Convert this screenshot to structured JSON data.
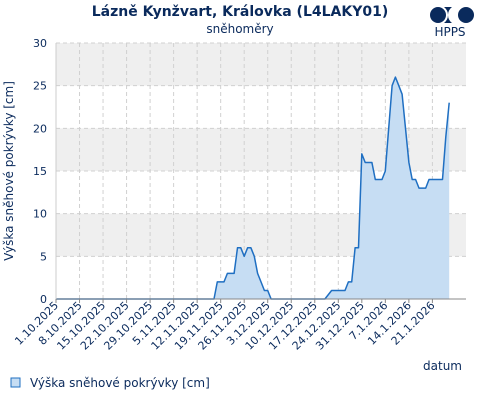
{
  "chart_data": {
    "type": "area",
    "title": "Lázně Kynžvart, Královka (L4LAKY01)",
    "subtitle": "sněhoměry",
    "xlabel": "datum",
    "ylabel": "Výška sněhové pokrývky [cm]",
    "ylim": [
      0,
      30
    ],
    "yticks": [
      0,
      5,
      10,
      15,
      20,
      25,
      30
    ],
    "xlim": [
      "2025-10-01",
      "2026-01-31"
    ],
    "xticks": [
      "2025-10-01",
      "2025-10-08",
      "2025-10-15",
      "2025-10-22",
      "2025-10-29",
      "2025-11-05",
      "2025-11-12",
      "2025-11-19",
      "2025-11-26",
      "2025-12-03",
      "2025-12-10",
      "2025-12-17",
      "2025-12-24",
      "2025-12-31",
      "2026-01-07",
      "2026-01-14",
      "2026-01-21"
    ],
    "xtick_labels": [
      "1.10.2025",
      "8.10.2025",
      "15.10.2025",
      "22.10.2025",
      "29.10.2025",
      "5.11.2025",
      "12.11.2025",
      "19.11.2025",
      "26.11.2025",
      "3.12.2025",
      "10.12.2025",
      "17.12.2025",
      "24.12.2025",
      "31.12.2025",
      "7.1.2026",
      "14.1.2026",
      "21.1.2026"
    ],
    "grid": true,
    "legend_position": "bottom-left",
    "series": [
      {
        "name": "Výška sněhové pokrývky [cm]",
        "color": "#1f6fc2",
        "fill": "#c6ddf3",
        "points": [
          [
            "2025-10-01",
            0
          ],
          [
            "2025-11-17",
            0
          ],
          [
            "2025-11-18",
            2
          ],
          [
            "2025-11-20",
            2
          ],
          [
            "2025-11-21",
            3
          ],
          [
            "2025-11-23",
            3
          ],
          [
            "2025-11-24",
            6
          ],
          [
            "2025-11-25",
            6
          ],
          [
            "2025-11-26",
            5
          ],
          [
            "2025-11-27",
            6
          ],
          [
            "2025-11-28",
            6
          ],
          [
            "2025-11-29",
            5
          ],
          [
            "2025-11-30",
            3
          ],
          [
            "2025-12-01",
            2
          ],
          [
            "2025-12-02",
            1
          ],
          [
            "2025-12-03",
            1
          ],
          [
            "2025-12-04",
            0
          ],
          [
            "2025-12-20",
            0
          ],
          [
            "2025-12-22",
            1
          ],
          [
            "2025-12-26",
            1
          ],
          [
            "2025-12-27",
            2
          ],
          [
            "2025-12-28",
            2
          ],
          [
            "2025-12-29",
            6
          ],
          [
            "2025-12-30",
            6
          ],
          [
            "2025-12-31",
            17
          ],
          [
            "2026-01-01",
            16
          ],
          [
            "2026-01-03",
            16
          ],
          [
            "2026-01-04",
            14
          ],
          [
            "2026-01-06",
            14
          ],
          [
            "2026-01-07",
            15
          ],
          [
            "2026-01-08",
            20
          ],
          [
            "2026-01-09",
            25
          ],
          [
            "2026-01-10",
            26
          ],
          [
            "2026-01-11",
            25
          ],
          [
            "2026-01-12",
            24
          ],
          [
            "2026-01-13",
            20
          ],
          [
            "2026-01-14",
            16
          ],
          [
            "2026-01-15",
            14
          ],
          [
            "2026-01-16",
            14
          ],
          [
            "2026-01-17",
            13
          ],
          [
            "2026-01-19",
            13
          ],
          [
            "2026-01-20",
            14
          ],
          [
            "2026-01-24",
            14
          ],
          [
            "2026-01-25",
            19
          ],
          [
            "2026-01-26",
            23
          ]
        ]
      }
    ]
  },
  "branding": {
    "logo_text": "HPPS",
    "logo_color": "#0a2a5c"
  }
}
